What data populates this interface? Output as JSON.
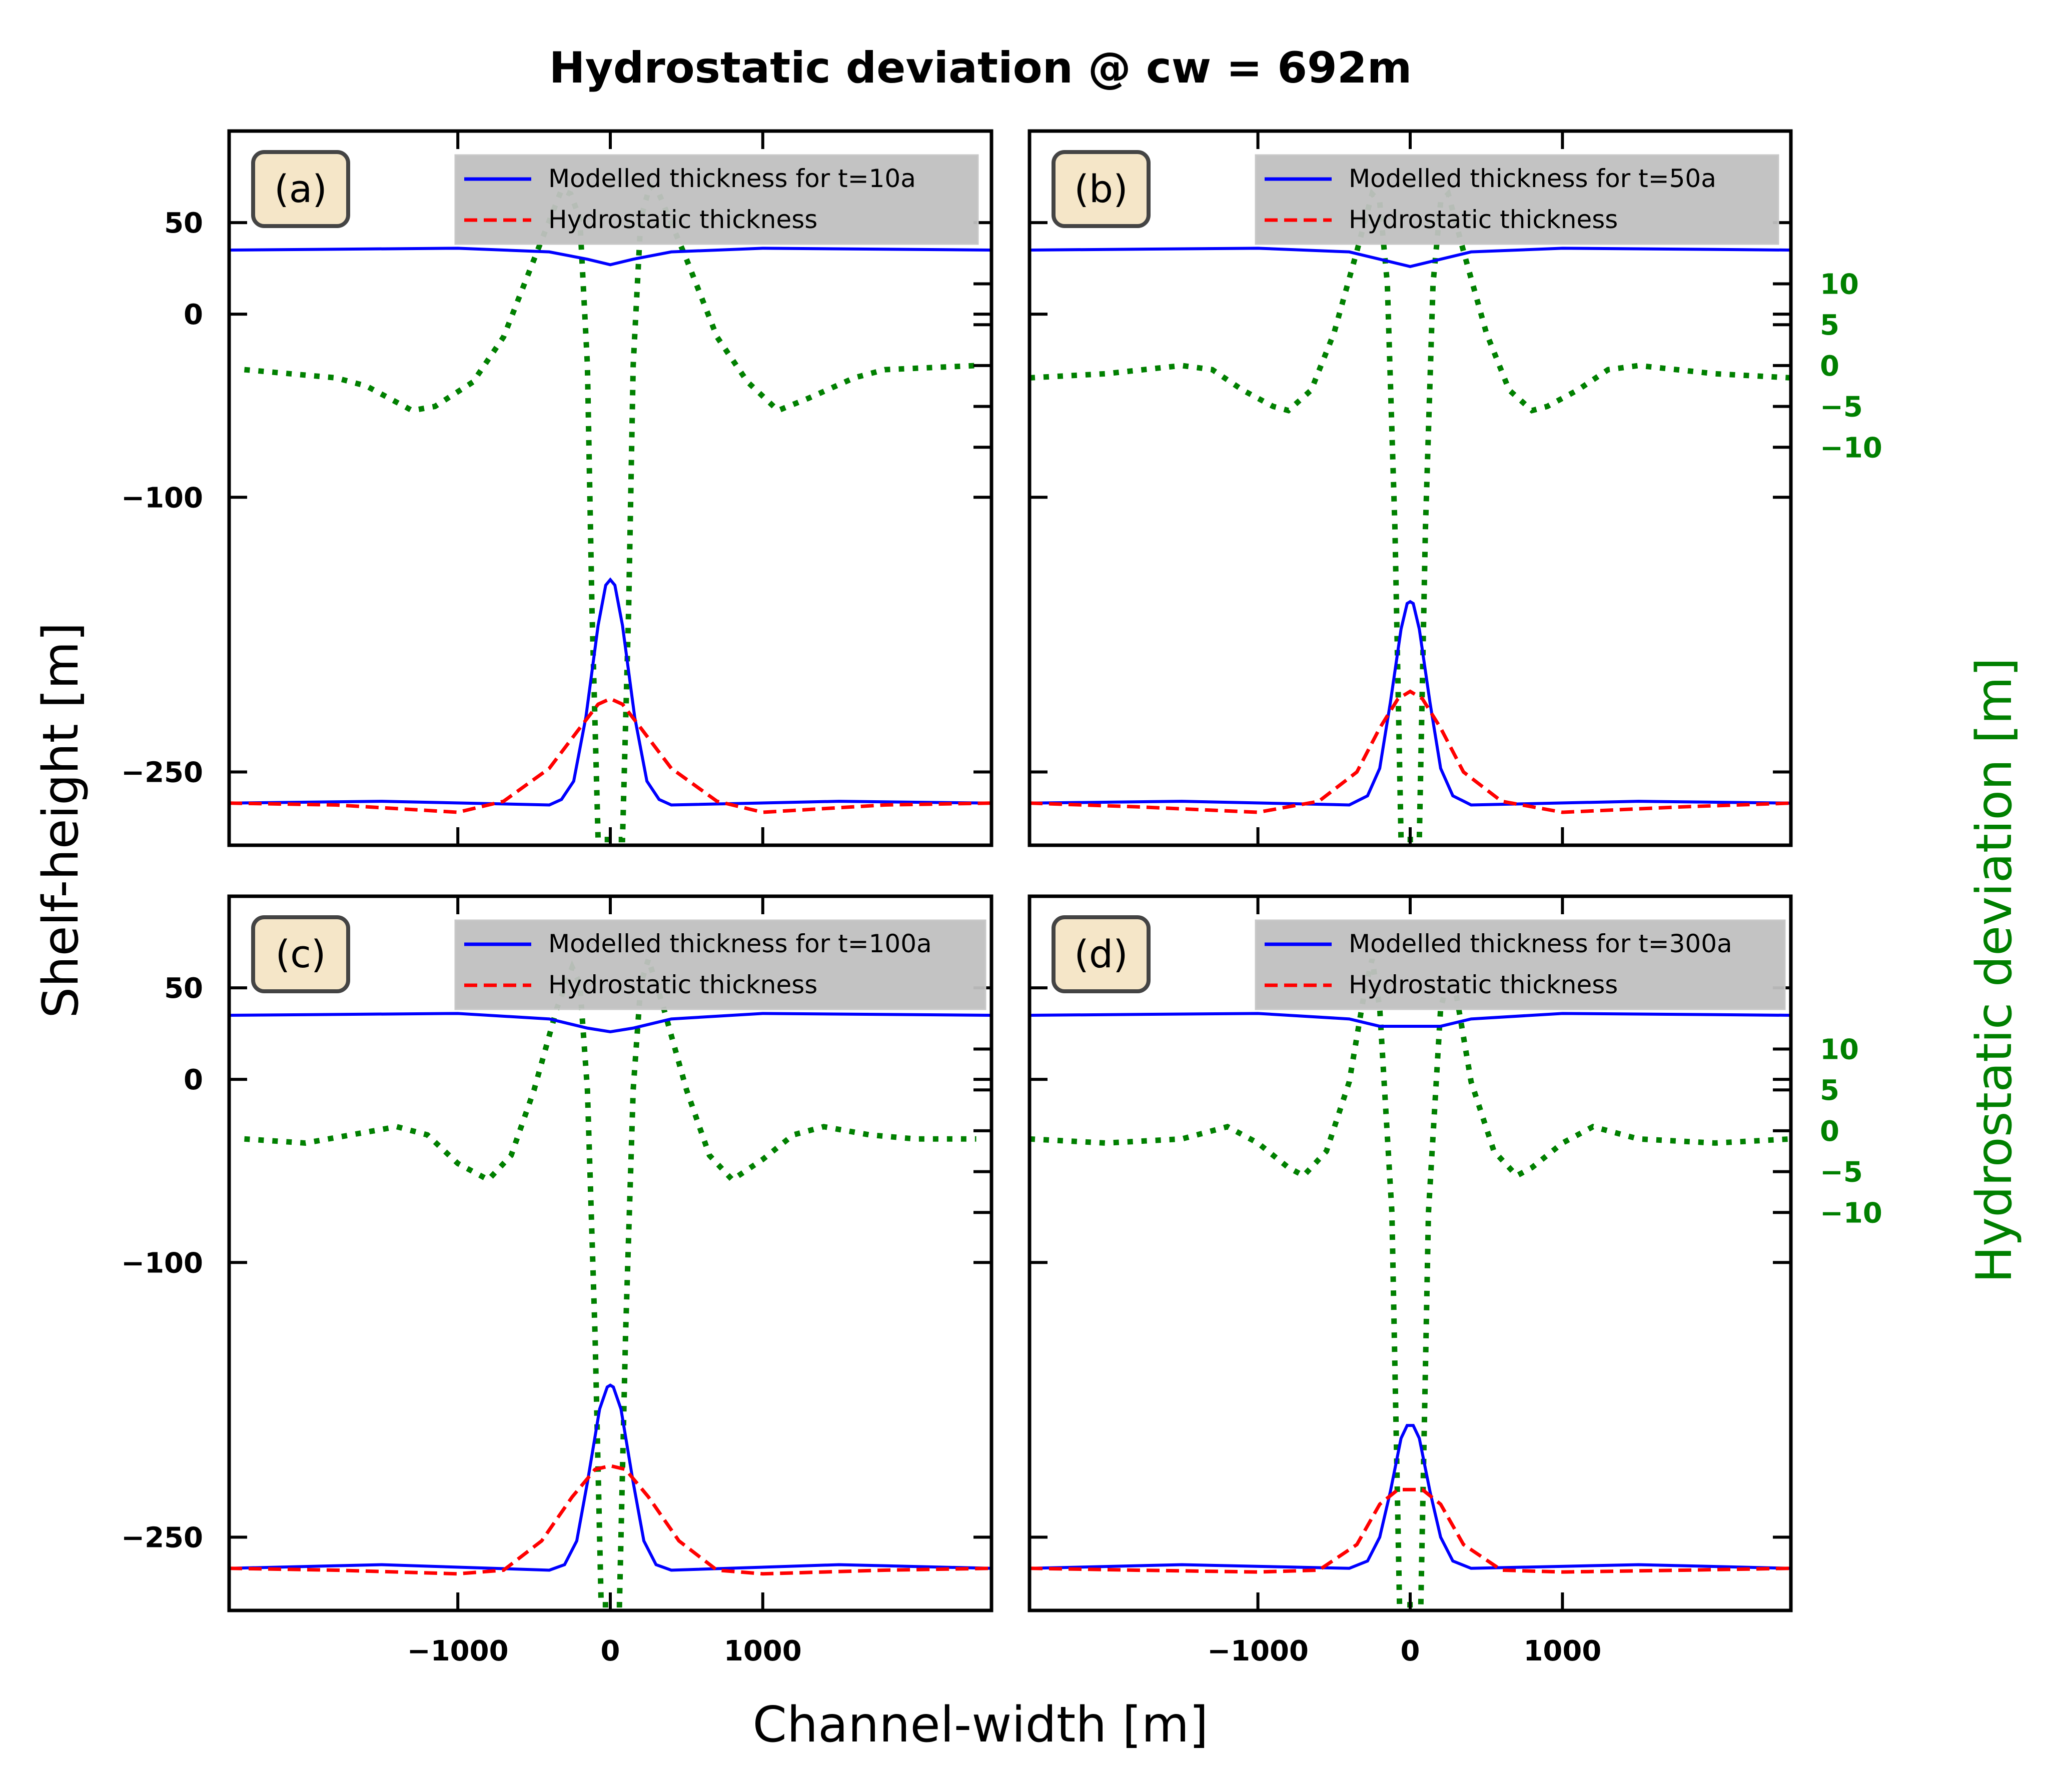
{
  "title": "Hydrostatic deviation @ cw = 692m",
  "xlabel": "Channel-width [m]",
  "ylabel_left": "Shelf-height [m]",
  "ylabel_right": "Hydrostatic deviation [m]",
  "colors": {
    "modelled": "#0000ff",
    "hydrostatic": "#ff0000",
    "deviation": "#008000",
    "label_box_fill": "#f5e6c8",
    "legend_fill": "#c0c0c0"
  },
  "chart_data": [
    {
      "type": "line",
      "panel_label": "(a)",
      "legend": [
        "Modelled thickness for t=10a",
        "Hydrostatic thickness"
      ],
      "xlim": [
        -2500,
        2500
      ],
      "ylim": [
        -290,
        100
      ],
      "xticks": [
        -1000,
        0,
        1000
      ],
      "yticks": [
        50,
        0,
        -100,
        -250
      ],
      "right_ylim": [
        -58.7,
        28.7
      ],
      "right_yticks": [
        10,
        5,
        0,
        -5,
        -10
      ],
      "grid": false,
      "legend_position": "upper-right",
      "series": [
        {
          "name": "Modelled thickness for t=10a",
          "style": "solid",
          "axis": "left",
          "x": [
            -2500,
            -1000,
            -400,
            -150,
            0,
            150,
            400,
            1000,
            2500
          ],
          "y": [
            35,
            36,
            34,
            30,
            27,
            30,
            34,
            36,
            35
          ]
        },
        {
          "name": "Modelled thickness for t=10a",
          "style": "solid",
          "axis": "left",
          "x": [
            -2500,
            -1500,
            -400,
            -320,
            -240,
            -160,
            -80,
            -30,
            0,
            30,
            80,
            160,
            240,
            320,
            400,
            1500,
            2500
          ],
          "y": [
            -267,
            -266,
            -268,
            -265,
            -255,
            -220,
            -170,
            -148,
            -145,
            -148,
            -170,
            -220,
            -255,
            -265,
            -268,
            -266,
            -267
          ]
        },
        {
          "name": "Hydrostatic thickness",
          "style": "dashed",
          "axis": "left",
          "x": [
            -2500,
            -1800,
            -1000,
            -700,
            -400,
            -200,
            -80,
            0,
            80,
            200,
            400,
            700,
            1000,
            1800,
            2500
          ],
          "y": [
            -267,
            -268,
            -272,
            -266,
            -248,
            -226,
            -213,
            -210,
            -213,
            -226,
            -248,
            -266,
            -272,
            -268,
            -267
          ]
        }
      ],
      "deviation": {
        "axis": "right",
        "x": [
          -2400,
          -1800,
          -1600,
          -1300,
          -1150,
          -900,
          -700,
          -500,
          -320,
          -260,
          -200,
          -150,
          -120,
          -80,
          0,
          80,
          120,
          150,
          200,
          260,
          320,
          500,
          700,
          900,
          1100,
          1300,
          1600,
          1800,
          2400
        ],
        "y": [
          -0.5,
          -1.5,
          -2.5,
          -5.5,
          -5.0,
          -2.0,
          3.5,
          13.0,
          21.5,
          21.0,
          18.0,
          0,
          -30,
          -58,
          -58,
          -58,
          -30,
          0,
          18,
          22,
          21,
          13,
          3.5,
          -2.0,
          -5.5,
          -4.0,
          -1.5,
          -0.5,
          0
        ]
      }
    },
    {
      "type": "line",
      "panel_label": "(b)",
      "legend": [
        "Modelled thickness for t=50a",
        "Hydrostatic thickness"
      ],
      "xlim": [
        -2500,
        2500
      ],
      "ylim": [
        -290,
        100
      ],
      "xticks": [
        -1000,
        0,
        1000
      ],
      "yticks": [
        50,
        0,
        -100,
        -250
      ],
      "right_ylim": [
        -58.7,
        28.7
      ],
      "right_yticks": [
        10,
        5,
        0,
        -5,
        -10
      ],
      "grid": false,
      "legend_position": "upper-right",
      "series": [
        {
          "name": "Modelled thickness for t=50a",
          "style": "solid",
          "axis": "left",
          "x": [
            -2500,
            -1000,
            -400,
            -150,
            0,
            150,
            400,
            1000,
            2500
          ],
          "y": [
            35,
            36,
            34,
            29,
            26,
            29,
            34,
            36,
            35
          ]
        },
        {
          "name": "Modelled thickness for t=50a",
          "style": "solid",
          "axis": "left",
          "x": [
            -2500,
            -1500,
            -400,
            -280,
            -200,
            -130,
            -60,
            -20,
            0,
            20,
            60,
            130,
            200,
            280,
            400,
            1500,
            2500
          ],
          "y": [
            -267,
            -266,
            -268,
            -263,
            -248,
            -212,
            -172,
            -158,
            -157,
            -158,
            -172,
            -212,
            -248,
            -263,
            -268,
            -266,
            -267
          ]
        },
        {
          "name": "Hydrostatic thickness",
          "style": "dashed",
          "axis": "left",
          "x": [
            -2500,
            -1800,
            -1000,
            -600,
            -350,
            -200,
            -80,
            0,
            80,
            200,
            350,
            600,
            1000,
            1800,
            2500
          ],
          "y": [
            -267,
            -269,
            -272,
            -266,
            -250,
            -226,
            -210,
            -206,
            -210,
            -226,
            -250,
            -266,
            -272,
            -269,
            -267
          ]
        }
      ],
      "deviation": {
        "axis": "right",
        "x": [
          -2500,
          -2000,
          -1500,
          -1300,
          -1100,
          -900,
          -800,
          -650,
          -500,
          -350,
          -250,
          -200,
          -150,
          -100,
          -60,
          0,
          60,
          100,
          150,
          200,
          250,
          350,
          500,
          650,
          800,
          900,
          1100,
          1300,
          1500,
          2000,
          2500
        ],
        "y": [
          -1.5,
          -1.0,
          0,
          -0.5,
          -3.0,
          -5.0,
          -5.5,
          -3.0,
          4.0,
          14.0,
          21.0,
          20.0,
          10,
          -20,
          -58,
          -58,
          -58,
          -20,
          10,
          20,
          21,
          14,
          4.0,
          -3.0,
          -5.5,
          -5.0,
          -3.0,
          -0.5,
          0,
          -1.0,
          -1.5
        ]
      }
    },
    {
      "type": "line",
      "panel_label": "(c)",
      "legend": [
        "Modelled thickness for t=100a",
        "Hydrostatic thickness"
      ],
      "xlim": [
        -2500,
        2500
      ],
      "ylim": [
        -290,
        100
      ],
      "xticks": [
        -1000,
        0,
        1000
      ],
      "yticks": [
        50,
        0,
        -100,
        -250
      ],
      "right_ylim": [
        -58.7,
        28.7
      ],
      "right_yticks": [
        10,
        5,
        0,
        -5,
        -10
      ],
      "grid": false,
      "legend_position": "upper-right",
      "series": [
        {
          "name": "Modelled thickness for t=100a",
          "style": "solid",
          "axis": "left",
          "x": [
            -2500,
            -1000,
            -400,
            -150,
            0,
            150,
            400,
            1000,
            2500
          ],
          "y": [
            35,
            36,
            33,
            28,
            26,
            28,
            33,
            36,
            35
          ]
        },
        {
          "name": "Modelled thickness for t=100a",
          "style": "solid",
          "axis": "left",
          "x": [
            -2500,
            -1500,
            -400,
            -300,
            -220,
            -150,
            -70,
            -20,
            0,
            20,
            70,
            150,
            220,
            300,
            400,
            1500,
            2500
          ],
          "y": [
            -267,
            -265,
            -268,
            -265,
            -252,
            -220,
            -180,
            -168,
            -167,
            -168,
            -180,
            -220,
            -252,
            -265,
            -268,
            -265,
            -267
          ]
        },
        {
          "name": "Hydrostatic thickness",
          "style": "dashed",
          "axis": "left",
          "x": [
            -2500,
            -1800,
            -1000,
            -700,
            -450,
            -250,
            -100,
            0,
            100,
            250,
            450,
            700,
            1000,
            1800,
            2500
          ],
          "y": [
            -267,
            -268,
            -270,
            -268,
            -252,
            -228,
            -213,
            -211,
            -213,
            -228,
            -252,
            -268,
            -270,
            -268,
            -267
          ]
        }
      ],
      "deviation": {
        "axis": "right",
        "x": [
          -2400,
          -2000,
          -1700,
          -1400,
          -1200,
          -1000,
          -800,
          -650,
          -500,
          -350,
          -250,
          -200,
          -150,
          -100,
          -60,
          0,
          60,
          100,
          150,
          200,
          250,
          350,
          500,
          650,
          800,
          1000,
          1200,
          1400,
          1700,
          2000,
          2400
        ],
        "y": [
          -1.0,
          -1.5,
          -0.5,
          0.5,
          -0.5,
          -4.0,
          -6.0,
          -3.0,
          5.0,
          15.0,
          20.0,
          18.0,
          5,
          -25,
          -58,
          -58,
          -58,
          -25,
          5,
          18,
          21,
          15,
          5.0,
          -3.0,
          -6.0,
          -3.5,
          -0.5,
          0.5,
          -0.5,
          -1.0,
          -1.0
        ]
      }
    },
    {
      "type": "line",
      "panel_label": "(d)",
      "legend": [
        "Modelled thickness for t=300a",
        "Hydrostatic thickness"
      ],
      "xlim": [
        -2500,
        2500
      ],
      "ylim": [
        -290,
        100
      ],
      "xticks": [
        -1000,
        0,
        1000
      ],
      "yticks": [
        50,
        0,
        -100,
        -250
      ],
      "right_ylim": [
        -58.7,
        28.7
      ],
      "right_yticks": [
        10,
        5,
        0,
        -5,
        -10
      ],
      "grid": false,
      "legend_position": "upper-right",
      "series": [
        {
          "name": "Modelled thickness for t=300a",
          "style": "solid",
          "axis": "left",
          "x": [
            -2500,
            -1000,
            -400,
            -200,
            0,
            200,
            400,
            1000,
            2500
          ],
          "y": [
            35,
            36,
            33,
            29,
            29,
            29,
            33,
            36,
            35
          ]
        },
        {
          "name": "Modelled thickness for t=300a",
          "style": "solid",
          "axis": "left",
          "x": [
            -2500,
            -1500,
            -400,
            -280,
            -200,
            -130,
            -60,
            -20,
            0,
            20,
            60,
            130,
            200,
            280,
            400,
            1500,
            2500
          ],
          "y": [
            -267,
            -265,
            -267,
            -263,
            -250,
            -225,
            -196,
            -189,
            -189,
            -189,
            -196,
            -225,
            -250,
            -263,
            -267,
            -265,
            -267
          ]
        },
        {
          "name": "Hydrostatic thickness",
          "style": "dashed",
          "axis": "left",
          "x": [
            -2500,
            -1800,
            -1000,
            -600,
            -350,
            -200,
            -80,
            0,
            80,
            200,
            350,
            600,
            1000,
            1800,
            2500
          ],
          "y": [
            -267,
            -268,
            -269,
            -268,
            -254,
            -232,
            -224,
            -224,
            -224,
            -232,
            -254,
            -268,
            -269,
            -268,
            -267
          ]
        }
      ],
      "deviation": {
        "axis": "right",
        "x": [
          -2500,
          -2000,
          -1500,
          -1200,
          -1000,
          -800,
          -700,
          -550,
          -400,
          -300,
          -250,
          -200,
          -120,
          -70,
          0,
          70,
          120,
          200,
          250,
          300,
          400,
          550,
          700,
          800,
          1000,
          1200,
          1500,
          2000,
          2500
        ],
        "y": [
          -1.0,
          -1.5,
          -1.0,
          0.5,
          -1.5,
          -4.5,
          -5.5,
          -2.5,
          6.0,
          17.0,
          21.0,
          15.0,
          -10,
          -58,
          -58,
          -58,
          -10,
          15,
          18.5,
          17,
          6.0,
          -2.5,
          -5.5,
          -4.5,
          -1.5,
          0.5,
          -1.0,
          -1.5,
          -1.0
        ]
      }
    }
  ]
}
